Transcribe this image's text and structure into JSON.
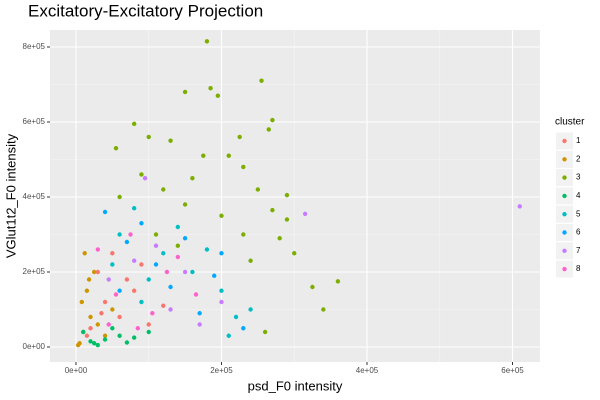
{
  "chart_data": {
    "type": "scatter",
    "title": "Excitatory-Excitatory Projection",
    "x_label": "psd_F0 intensity",
    "y_label": "VGlut1t2_F0 intensity",
    "legend_title": "cluster",
    "xlim": [
      -35700,
      637800
    ],
    "ylim": [
      -40000,
      845300
    ],
    "xticks": [
      {
        "value": 0,
        "label": "0e+00"
      },
      {
        "value": 200000,
        "label": "2e+05"
      },
      {
        "value": 400000,
        "label": "4e+05"
      },
      {
        "value": 600000,
        "label": "6e+05"
      }
    ],
    "yticks": [
      {
        "value": 0,
        "label": "0e+00"
      },
      {
        "value": 200000,
        "label": "2e+05"
      },
      {
        "value": 400000,
        "label": "4e+05"
      },
      {
        "value": 600000,
        "label": "6e+05"
      },
      {
        "value": 800000,
        "label": "8e+05"
      }
    ],
    "xminor": [
      100000,
      300000,
      500000
    ],
    "yminor": [
      100000,
      300000,
      500000,
      700000
    ],
    "grid": true,
    "series": [
      {
        "name": "1",
        "color": "#F8766D",
        "x": [
          20000,
          40000,
          60000,
          30000,
          80000,
          100000,
          50000,
          15000,
          70000,
          120000,
          35000,
          90000
        ],
        "values": [
          50000,
          120000,
          80000,
          200000,
          150000,
          60000,
          250000,
          30000,
          180000,
          110000,
          90000,
          220000
        ]
      },
      {
        "name": "2",
        "color": "#CD9600",
        "x": [
          5000,
          10000,
          20000,
          15000,
          30000,
          25000,
          8000,
          40000,
          12000,
          50000,
          3000,
          18000
        ],
        "values": [
          10000,
          40000,
          80000,
          150000,
          60000,
          200000,
          120000,
          30000,
          250000,
          100000,
          5000,
          180000
        ]
      },
      {
        "name": "3",
        "color": "#7CAE00",
        "x": [
          180000,
          255000,
          150000,
          185000,
          195000,
          270000,
          225000,
          80000,
          265000,
          100000,
          130000,
          55000,
          175000,
          210000,
          290000,
          270000,
          340000,
          360000,
          325000,
          300000,
          230000,
          250000,
          290000,
          260000,
          120000,
          150000,
          200000,
          160000,
          90000,
          110000,
          140000,
          230000,
          60000,
          240000,
          280000
        ],
        "values": [
          815000,
          710000,
          680000,
          690000,
          670000,
          605000,
          560000,
          595000,
          580000,
          560000,
          550000,
          530000,
          510000,
          510000,
          405000,
          365000,
          100000,
          175000,
          160000,
          250000,
          300000,
          420000,
          340000,
          40000,
          420000,
          380000,
          350000,
          450000,
          460000,
          300000,
          270000,
          480000,
          400000,
          230000,
          290000
        ]
      },
      {
        "name": "4",
        "color": "#00BE67",
        "x": [
          20000,
          40000,
          60000,
          30000,
          80000,
          10000,
          50000,
          100000,
          25000,
          70000
        ],
        "values": [
          15000,
          20000,
          30000,
          5000,
          25000,
          40000,
          50000,
          40000,
          10000,
          12000
        ]
      },
      {
        "name": "5",
        "color": "#00BFC4",
        "x": [
          60000,
          80000,
          120000,
          160000,
          200000,
          220000,
          100000,
          140000,
          180000,
          50000,
          90000,
          210000,
          240000
        ],
        "values": [
          300000,
          370000,
          250000,
          200000,
          150000,
          80000,
          180000,
          320000,
          260000,
          220000,
          120000,
          30000,
          100000
        ]
      },
      {
        "name": "6",
        "color": "#00A9FF",
        "x": [
          40000,
          70000,
          110000,
          130000,
          150000,
          190000,
          90000,
          170000,
          60000,
          200000,
          230000
        ],
        "values": [
          360000,
          280000,
          220000,
          160000,
          290000,
          190000,
          330000,
          90000,
          150000,
          250000,
          50000
        ]
      },
      {
        "name": "7",
        "color": "#C77CFF",
        "x": [
          610000,
          315000,
          95000,
          130000,
          170000,
          80000,
          200000,
          110000,
          150000,
          45000
        ],
        "values": [
          375000,
          355000,
          450000,
          100000,
          60000,
          230000,
          120000,
          270000,
          200000,
          180000
        ]
      },
      {
        "name": "8",
        "color": "#FF61CC",
        "x": [
          30000,
          55000,
          75000,
          105000,
          125000,
          45000,
          165000,
          85000,
          140000
        ],
        "values": [
          260000,
          140000,
          300000,
          90000,
          200000,
          60000,
          140000,
          50000,
          240000
        ]
      }
    ]
  }
}
